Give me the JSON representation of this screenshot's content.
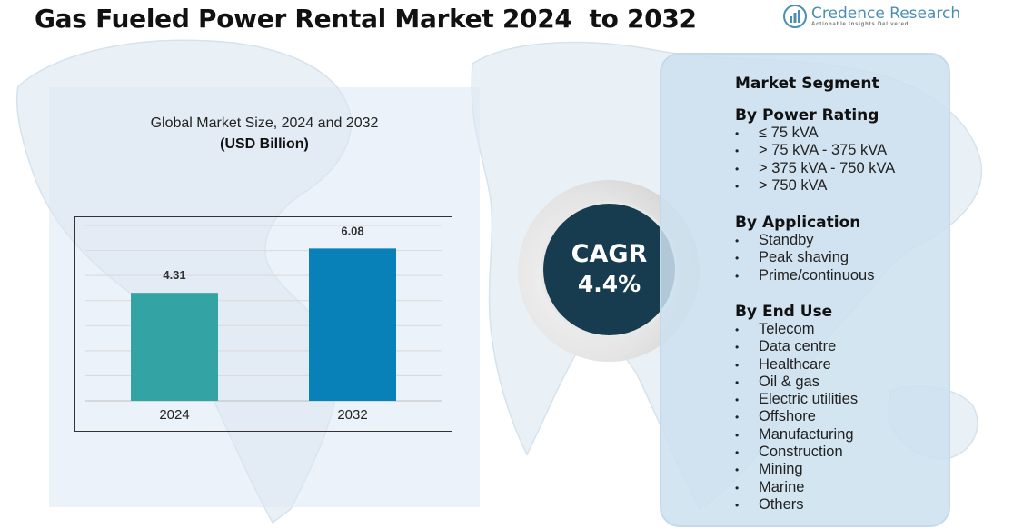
{
  "title": "Gas Fueled Power Rental Market 2024  to 2032",
  "logo": {
    "name": "Credence Research",
    "tagline": "Actionable Insights Delivered",
    "icon": "bar-chart-logo-icon"
  },
  "chart_panel": {
    "title": "Global Market Size, 2024 and 2032",
    "unit": "(USD Billion)"
  },
  "chart_data": {
    "type": "bar",
    "categories": [
      "2024",
      "2032"
    ],
    "values": [
      4.31,
      6.08
    ],
    "data_labels": [
      "4.31",
      "6.08"
    ],
    "colors": [
      "#34a3a3",
      "#0881b8"
    ],
    "title": "Global Market Size, 2024 and 2032",
    "ylabel": "(USD Billion)",
    "xlabel": "",
    "ylim": [
      0,
      7
    ],
    "grid": true,
    "gridline_count": 7
  },
  "cagr": {
    "label": "CAGR",
    "value": "4.4%"
  },
  "segments": {
    "heading": "Market Segment",
    "bullet": "•",
    "groups": [
      {
        "title": "By Power Rating",
        "items": [
          "≤ 75 kVA",
          "> 75 kVA - 375 kVA",
          "> 375 kVA - 750 kVA",
          "> 750 kVA"
        ]
      },
      {
        "title": "By Application",
        "items": [
          "Standby",
          "Peak shaving",
          "Prime/continuous"
        ]
      },
      {
        "title": "By End Use",
        "items": [
          "Telecom",
          "Data centre",
          "Healthcare",
          "Oil & gas",
          "Electric utilities",
          "Offshore",
          "Manufacturing",
          "Construction",
          "Mining",
          "Marine",
          "Others"
        ]
      }
    ]
  },
  "colors": {
    "cagr_circle": "#173c4f",
    "panel_fill": "#cde1f0",
    "map": "#e3ecf3"
  }
}
